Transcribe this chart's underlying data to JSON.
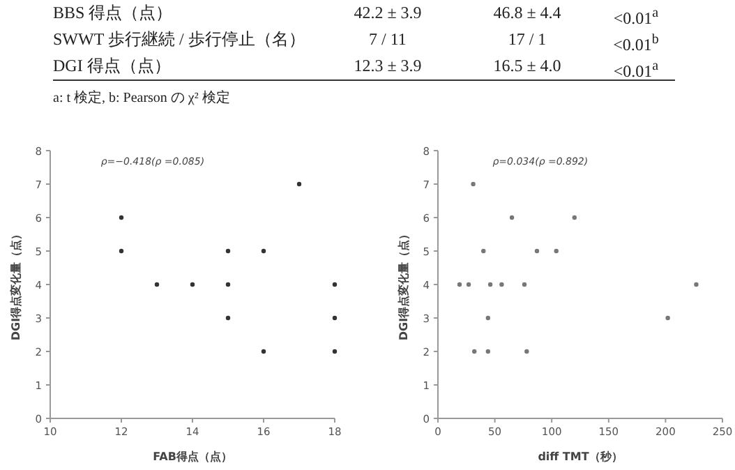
{
  "chart_data": [
    {
      "type": "other",
      "annotations": [
        "BBS 得点（点）",
        "42.2 ± 3.9",
        "46.8 ± 4.4",
        "<0.01$^{a}$",
        "SWWT 歩行継続 / 歩行停止（名）",
        "7 / 11",
        "17 / 1",
        "<0.01$^{b}$",
        "DGI 得点（点）",
        "12.3 ± 3.9",
        "16.5 ± 4.0",
        "<0.01$^{a}$",
        "a: t 検定,  b: Pearson の χ² 検定"
      ]
    },
    {
      "type": "scatter",
      "xlabel": "FAB得点（点）",
      "ylabel": "DGI得点変化量（点）",
      "xlim": [
        10,
        18
      ],
      "xticks": [
        10,
        12,
        14,
        16,
        18
      ],
      "ylim": [
        0,
        8
      ],
      "yticks": [
        0,
        1,
        2,
        3,
        4,
        5,
        6,
        7,
        8
      ],
      "marker": "circle",
      "annotations": [
        "ρ=−0.418(ρ =0.085)"
      ],
      "series": [
        {
          "color": "#333333",
          "x": [
            12,
            12,
            13,
            14,
            15,
            15,
            15,
            16,
            16,
            17,
            18,
            18,
            18
          ],
          "values": [
            6,
            5,
            4,
            4,
            5,
            4,
            3,
            5,
            2,
            7,
            4,
            3,
            2
          ]
        }
      ]
    },
    {
      "type": "scatter",
      "xlabel": "diff TMT（秒）",
      "ylabel": "DGI得点変化量（点）",
      "xlim": [
        0,
        250
      ],
      "xticks": [
        0,
        50,
        100,
        150,
        200,
        250
      ],
      "ylim": [
        0,
        8
      ],
      "yticks": [
        0,
        1,
        2,
        3,
        4,
        5,
        6,
        7,
        8
      ],
      "marker": "circle",
      "annotations": [
        "ρ=0.034(ρ =0.892)"
      ],
      "series": [
        {
          "color": "#777777",
          "x": [
            31,
            65,
            120,
            40,
            87,
            104,
            19,
            27,
            46,
            56,
            76,
            227,
            44,
            202,
            32,
            44,
            78
          ],
          "values": [
            7,
            6,
            6,
            5,
            5,
            5,
            4,
            4,
            4,
            4,
            4,
            4,
            3,
            3,
            2,
            2,
            2
          ]
        }
      ]
    }
  ]
}
